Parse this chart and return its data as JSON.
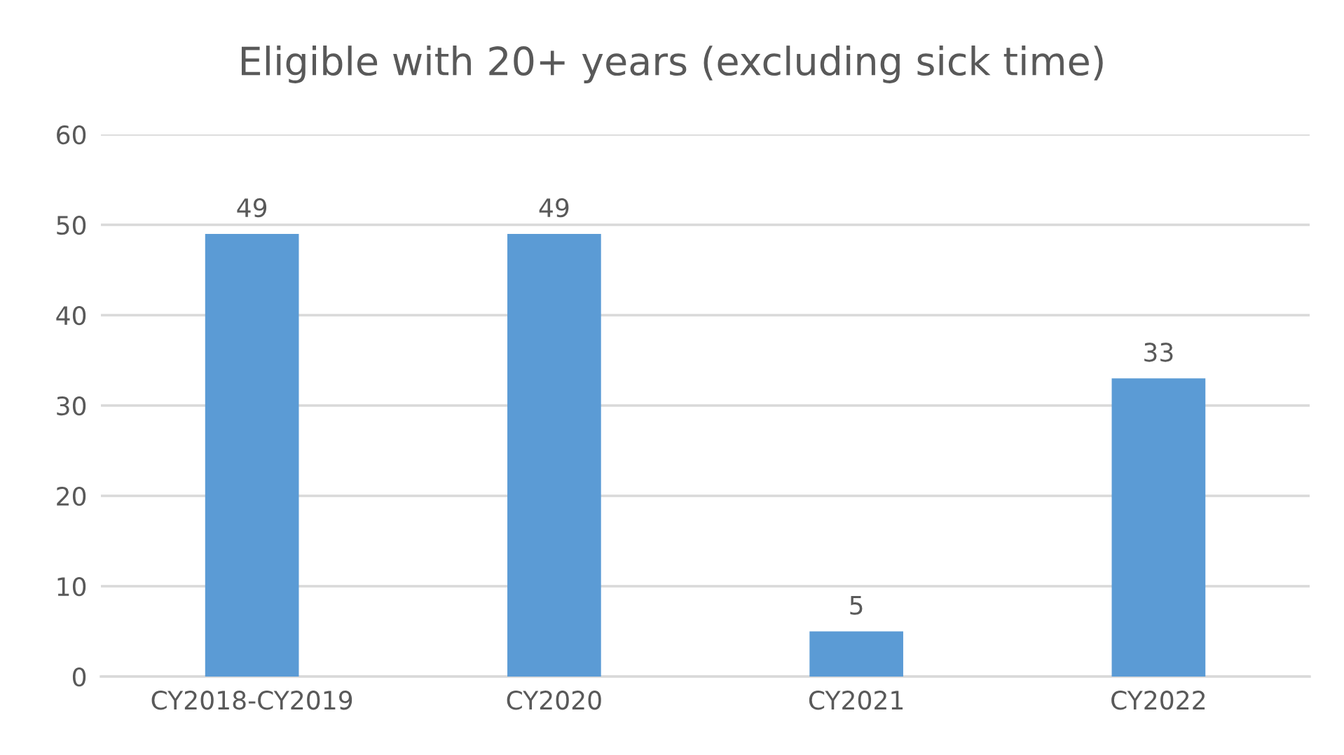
{
  "chart_data": {
    "type": "bar",
    "title": "Eligible with 20+ years (excluding sick time)",
    "categories": [
      "CY2018-CY2019",
      "CY2020",
      "CY2021",
      "CY2022"
    ],
    "values": [
      49,
      49,
      5,
      33
    ],
    "color": "#5b9bd5",
    "ylim": [
      0,
      60
    ],
    "yticks": [
      0,
      10,
      20,
      30,
      40,
      50,
      60
    ],
    "grid": "y",
    "data_labels": true
  }
}
